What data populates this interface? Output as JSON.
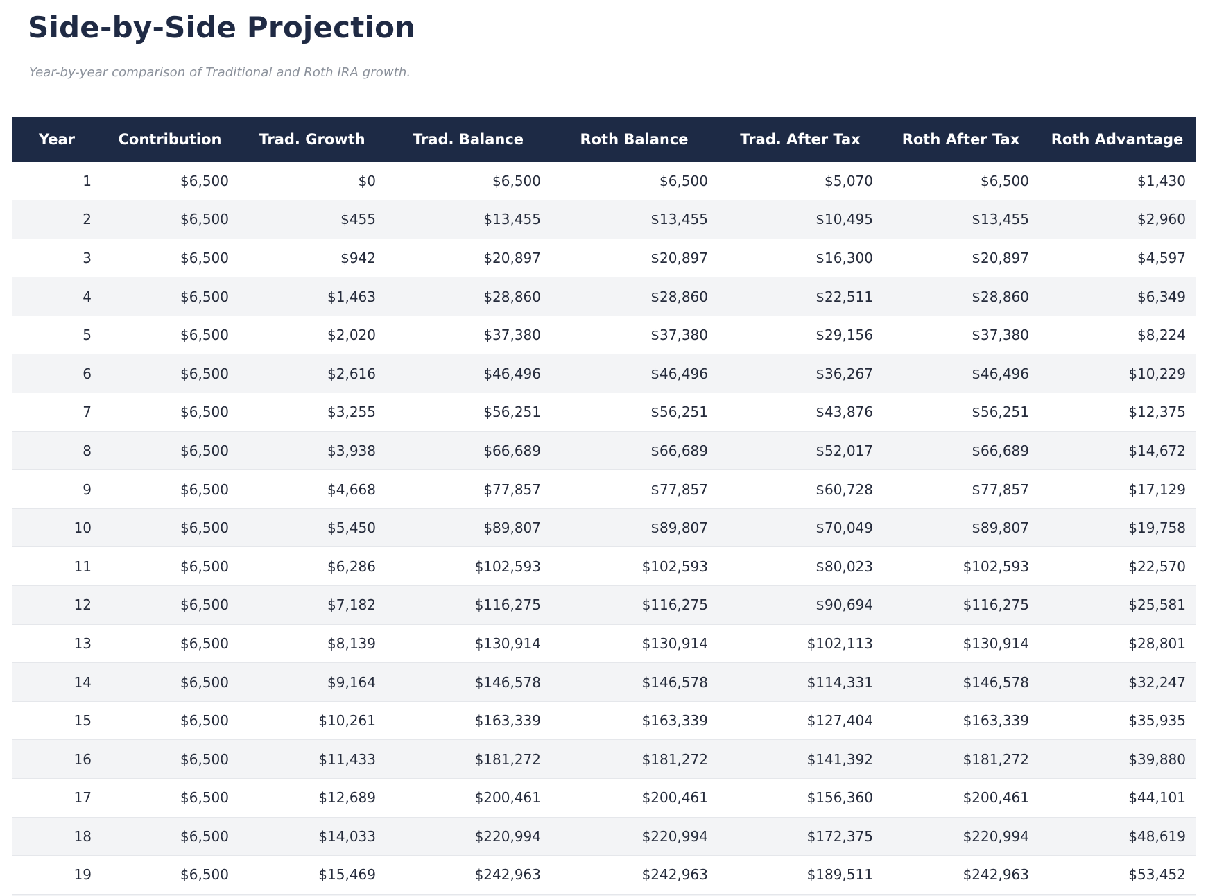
{
  "header": {
    "title": "Side-by-Side Projection",
    "subtitle": "Year-by-year comparison of Traditional and Roth IRA growth."
  },
  "colors": {
    "header_bg": "#1d2a45",
    "title_text": "#1f2a44",
    "subtitle_text": "#8b919b",
    "row_stripe": "#f3f4f6",
    "row_border": "#e5e7eb",
    "body_text": "#252b3b"
  },
  "table": {
    "columns": [
      "Year",
      "Contribution",
      "Trad. Growth",
      "Trad. Balance",
      "Roth Balance",
      "Trad. After Tax",
      "Roth After Tax",
      "Roth Advantage"
    ],
    "rows": [
      [
        "1",
        "$6,500",
        "$0",
        "$6,500",
        "$6,500",
        "$5,070",
        "$6,500",
        "$1,430"
      ],
      [
        "2",
        "$6,500",
        "$455",
        "$13,455",
        "$13,455",
        "$10,495",
        "$13,455",
        "$2,960"
      ],
      [
        "3",
        "$6,500",
        "$942",
        "$20,897",
        "$20,897",
        "$16,300",
        "$20,897",
        "$4,597"
      ],
      [
        "4",
        "$6,500",
        "$1,463",
        "$28,860",
        "$28,860",
        "$22,511",
        "$28,860",
        "$6,349"
      ],
      [
        "5",
        "$6,500",
        "$2,020",
        "$37,380",
        "$37,380",
        "$29,156",
        "$37,380",
        "$8,224"
      ],
      [
        "6",
        "$6,500",
        "$2,616",
        "$46,496",
        "$46,496",
        "$36,267",
        "$46,496",
        "$10,229"
      ],
      [
        "7",
        "$6,500",
        "$3,255",
        "$56,251",
        "$56,251",
        "$43,876",
        "$56,251",
        "$12,375"
      ],
      [
        "8",
        "$6,500",
        "$3,938",
        "$66,689",
        "$66,689",
        "$52,017",
        "$66,689",
        "$14,672"
      ],
      [
        "9",
        "$6,500",
        "$4,668",
        "$77,857",
        "$77,857",
        "$60,728",
        "$77,857",
        "$17,129"
      ],
      [
        "10",
        "$6,500",
        "$5,450",
        "$89,807",
        "$89,807",
        "$70,049",
        "$89,807",
        "$19,758"
      ],
      [
        "11",
        "$6,500",
        "$6,286",
        "$102,593",
        "$102,593",
        "$80,023",
        "$102,593",
        "$22,570"
      ],
      [
        "12",
        "$6,500",
        "$7,182",
        "$116,275",
        "$116,275",
        "$90,694",
        "$116,275",
        "$25,581"
      ],
      [
        "13",
        "$6,500",
        "$8,139",
        "$130,914",
        "$130,914",
        "$102,113",
        "$130,914",
        "$28,801"
      ],
      [
        "14",
        "$6,500",
        "$9,164",
        "$146,578",
        "$146,578",
        "$114,331",
        "$146,578",
        "$32,247"
      ],
      [
        "15",
        "$6,500",
        "$10,261",
        "$163,339",
        "$163,339",
        "$127,404",
        "$163,339",
        "$35,935"
      ],
      [
        "16",
        "$6,500",
        "$11,433",
        "$181,272",
        "$181,272",
        "$141,392",
        "$181,272",
        "$39,880"
      ],
      [
        "17",
        "$6,500",
        "$12,689",
        "$200,461",
        "$200,461",
        "$156,360",
        "$200,461",
        "$44,101"
      ],
      [
        "18",
        "$6,500",
        "$14,033",
        "$220,994",
        "$220,994",
        "$172,375",
        "$220,994",
        "$48,619"
      ],
      [
        "19",
        "$6,500",
        "$15,469",
        "$242,963",
        "$242,963",
        "$189,511",
        "$242,963",
        "$53,452"
      ]
    ]
  }
}
